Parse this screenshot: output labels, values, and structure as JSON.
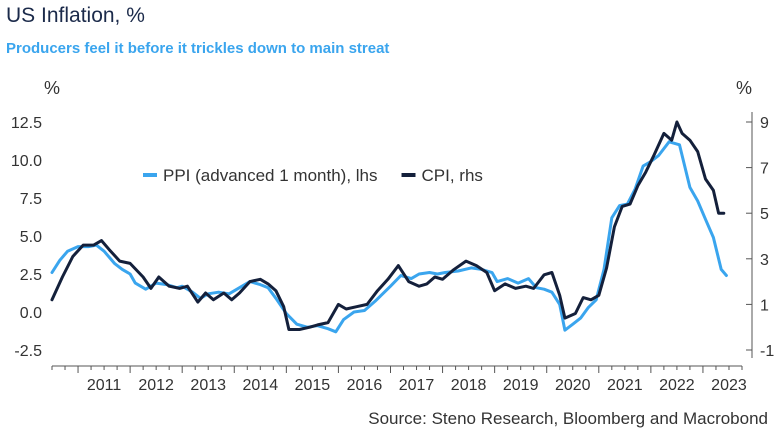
{
  "chart_data": {
    "type": "line",
    "title": "US Inflation, %",
    "subtitle": "Producers feel it before it trickles down to main streat",
    "source": "Source: Steno Research, Bloomberg and Macrobond",
    "y_left": {
      "unit": "%",
      "min": -2.5,
      "max": 12.5,
      "ticks": [
        "12.5",
        "10.0",
        "7.5",
        "5.0",
        "2.5",
        "0.0",
        "-2.5"
      ]
    },
    "y_right": {
      "unit": "%",
      "min": -1,
      "max": 9,
      "ticks": [
        "9",
        "7",
        "5",
        "3",
        "1",
        "-1"
      ]
    },
    "x_range": [
      2010.5,
      2023.75
    ],
    "x_ticks": [
      "2011",
      "2012",
      "2013",
      "2014",
      "2015",
      "2016",
      "2017",
      "2018",
      "2019",
      "2020",
      "2021",
      "2022",
      "2023"
    ],
    "legend_position": "top-left",
    "series": [
      {
        "name": "PPI (advanced 1 month), lhs",
        "axis": "left",
        "color": "#3aa5ee",
        "points": [
          [
            2010.5,
            2.6
          ],
          [
            2010.65,
            3.4
          ],
          [
            2010.8,
            4.0
          ],
          [
            2011.0,
            4.3
          ],
          [
            2011.2,
            4.3
          ],
          [
            2011.35,
            4.4
          ],
          [
            2011.5,
            4.0
          ],
          [
            2011.7,
            3.2
          ],
          [
            2011.85,
            2.8
          ],
          [
            2012.0,
            2.5
          ],
          [
            2012.1,
            1.9
          ],
          [
            2012.3,
            1.5
          ],
          [
            2012.5,
            1.9
          ],
          [
            2012.7,
            1.8
          ],
          [
            2012.9,
            1.6
          ],
          [
            2013.0,
            1.7
          ],
          [
            2013.2,
            1.3
          ],
          [
            2013.35,
            0.9
          ],
          [
            2013.5,
            1.2
          ],
          [
            2013.7,
            1.3
          ],
          [
            2013.9,
            1.2
          ],
          [
            2014.1,
            1.6
          ],
          [
            2014.3,
            2.0
          ],
          [
            2014.5,
            1.8
          ],
          [
            2014.65,
            1.6
          ],
          [
            2014.8,
            0.9
          ],
          [
            2015.0,
            -0.1
          ],
          [
            2015.2,
            -0.8
          ],
          [
            2015.4,
            -1.0
          ],
          [
            2015.6,
            -0.9
          ],
          [
            2015.8,
            -1.1
          ],
          [
            2015.95,
            -1.3
          ],
          [
            2016.1,
            -0.5
          ],
          [
            2016.3,
            0.0
          ],
          [
            2016.5,
            0.1
          ],
          [
            2016.7,
            0.7
          ],
          [
            2016.85,
            1.2
          ],
          [
            2017.0,
            1.7
          ],
          [
            2017.2,
            2.4
          ],
          [
            2017.4,
            2.2
          ],
          [
            2017.55,
            2.5
          ],
          [
            2017.75,
            2.6
          ],
          [
            2017.9,
            2.5
          ],
          [
            2018.05,
            2.6
          ],
          [
            2018.3,
            2.7
          ],
          [
            2018.55,
            2.9
          ],
          [
            2018.75,
            2.8
          ],
          [
            2018.95,
            2.6
          ],
          [
            2019.05,
            2.0
          ],
          [
            2019.25,
            2.2
          ],
          [
            2019.45,
            1.9
          ],
          [
            2019.65,
            2.2
          ],
          [
            2019.8,
            1.6
          ],
          [
            2019.95,
            1.5
          ],
          [
            2020.1,
            1.3
          ],
          [
            2020.25,
            0.5
          ],
          [
            2020.35,
            -1.2
          ],
          [
            2020.5,
            -0.8
          ],
          [
            2020.65,
            -0.4
          ],
          [
            2020.8,
            0.3
          ],
          [
            2020.95,
            0.8
          ],
          [
            2021.1,
            2.8
          ],
          [
            2021.25,
            6.2
          ],
          [
            2021.4,
            7.0
          ],
          [
            2021.55,
            7.1
          ],
          [
            2021.7,
            8.1
          ],
          [
            2021.85,
            9.6
          ],
          [
            2022.0,
            9.9
          ],
          [
            2022.15,
            10.3
          ],
          [
            2022.35,
            11.2
          ],
          [
            2022.55,
            11.0
          ],
          [
            2022.75,
            8.2
          ],
          [
            2022.9,
            7.3
          ],
          [
            2023.05,
            6.1
          ],
          [
            2023.2,
            4.9
          ],
          [
            2023.35,
            2.8
          ],
          [
            2023.45,
            2.4
          ]
        ]
      },
      {
        "name": "CPI, rhs",
        "axis": "right",
        "color": "#14203b",
        "points": [
          [
            2010.5,
            1.2
          ],
          [
            2010.7,
            2.2
          ],
          [
            2010.9,
            3.1
          ],
          [
            2011.1,
            3.6
          ],
          [
            2011.3,
            3.6
          ],
          [
            2011.45,
            3.8
          ],
          [
            2011.6,
            3.4
          ],
          [
            2011.8,
            2.9
          ],
          [
            2012.0,
            2.8
          ],
          [
            2012.25,
            2.2
          ],
          [
            2012.4,
            1.7
          ],
          [
            2012.55,
            2.2
          ],
          [
            2012.75,
            1.8
          ],
          [
            2012.95,
            1.7
          ],
          [
            2013.1,
            1.8
          ],
          [
            2013.3,
            1.1
          ],
          [
            2013.45,
            1.5
          ],
          [
            2013.6,
            1.2
          ],
          [
            2013.8,
            1.5
          ],
          [
            2013.95,
            1.2
          ],
          [
            2014.1,
            1.5
          ],
          [
            2014.3,
            2.0
          ],
          [
            2014.5,
            2.1
          ],
          [
            2014.65,
            1.9
          ],
          [
            2014.8,
            1.6
          ],
          [
            2014.95,
            0.9
          ],
          [
            2015.05,
            -0.1
          ],
          [
            2015.25,
            -0.1
          ],
          [
            2015.45,
            0.0
          ],
          [
            2015.6,
            0.1
          ],
          [
            2015.8,
            0.2
          ],
          [
            2016.0,
            1.0
          ],
          [
            2016.15,
            0.8
          ],
          [
            2016.35,
            0.9
          ],
          [
            2016.55,
            1.0
          ],
          [
            2016.75,
            1.6
          ],
          [
            2016.95,
            2.1
          ],
          [
            2017.15,
            2.7
          ],
          [
            2017.35,
            2.0
          ],
          [
            2017.55,
            1.8
          ],
          [
            2017.7,
            1.9
          ],
          [
            2017.85,
            2.2
          ],
          [
            2018.0,
            2.1
          ],
          [
            2018.2,
            2.5
          ],
          [
            2018.45,
            2.9
          ],
          [
            2018.65,
            2.7
          ],
          [
            2018.85,
            2.4
          ],
          [
            2019.0,
            1.6
          ],
          [
            2019.2,
            1.9
          ],
          [
            2019.4,
            1.7
          ],
          [
            2019.6,
            1.8
          ],
          [
            2019.75,
            1.7
          ],
          [
            2019.95,
            2.3
          ],
          [
            2020.1,
            2.4
          ],
          [
            2020.25,
            1.4
          ],
          [
            2020.35,
            0.4
          ],
          [
            2020.55,
            0.6
          ],
          [
            2020.7,
            1.3
          ],
          [
            2020.85,
            1.2
          ],
          [
            2021.0,
            1.4
          ],
          [
            2021.15,
            2.6
          ],
          [
            2021.3,
            4.4
          ],
          [
            2021.45,
            5.3
          ],
          [
            2021.6,
            5.4
          ],
          [
            2021.75,
            6.2
          ],
          [
            2021.9,
            6.8
          ],
          [
            2022.05,
            7.5
          ],
          [
            2022.25,
            8.5
          ],
          [
            2022.4,
            8.2
          ],
          [
            2022.5,
            9.0
          ],
          [
            2022.6,
            8.5
          ],
          [
            2022.75,
            8.2
          ],
          [
            2022.9,
            7.7
          ],
          [
            2023.05,
            6.5
          ],
          [
            2023.2,
            6.0
          ],
          [
            2023.3,
            5.0
          ],
          [
            2023.4,
            5.0
          ]
        ]
      }
    ]
  }
}
